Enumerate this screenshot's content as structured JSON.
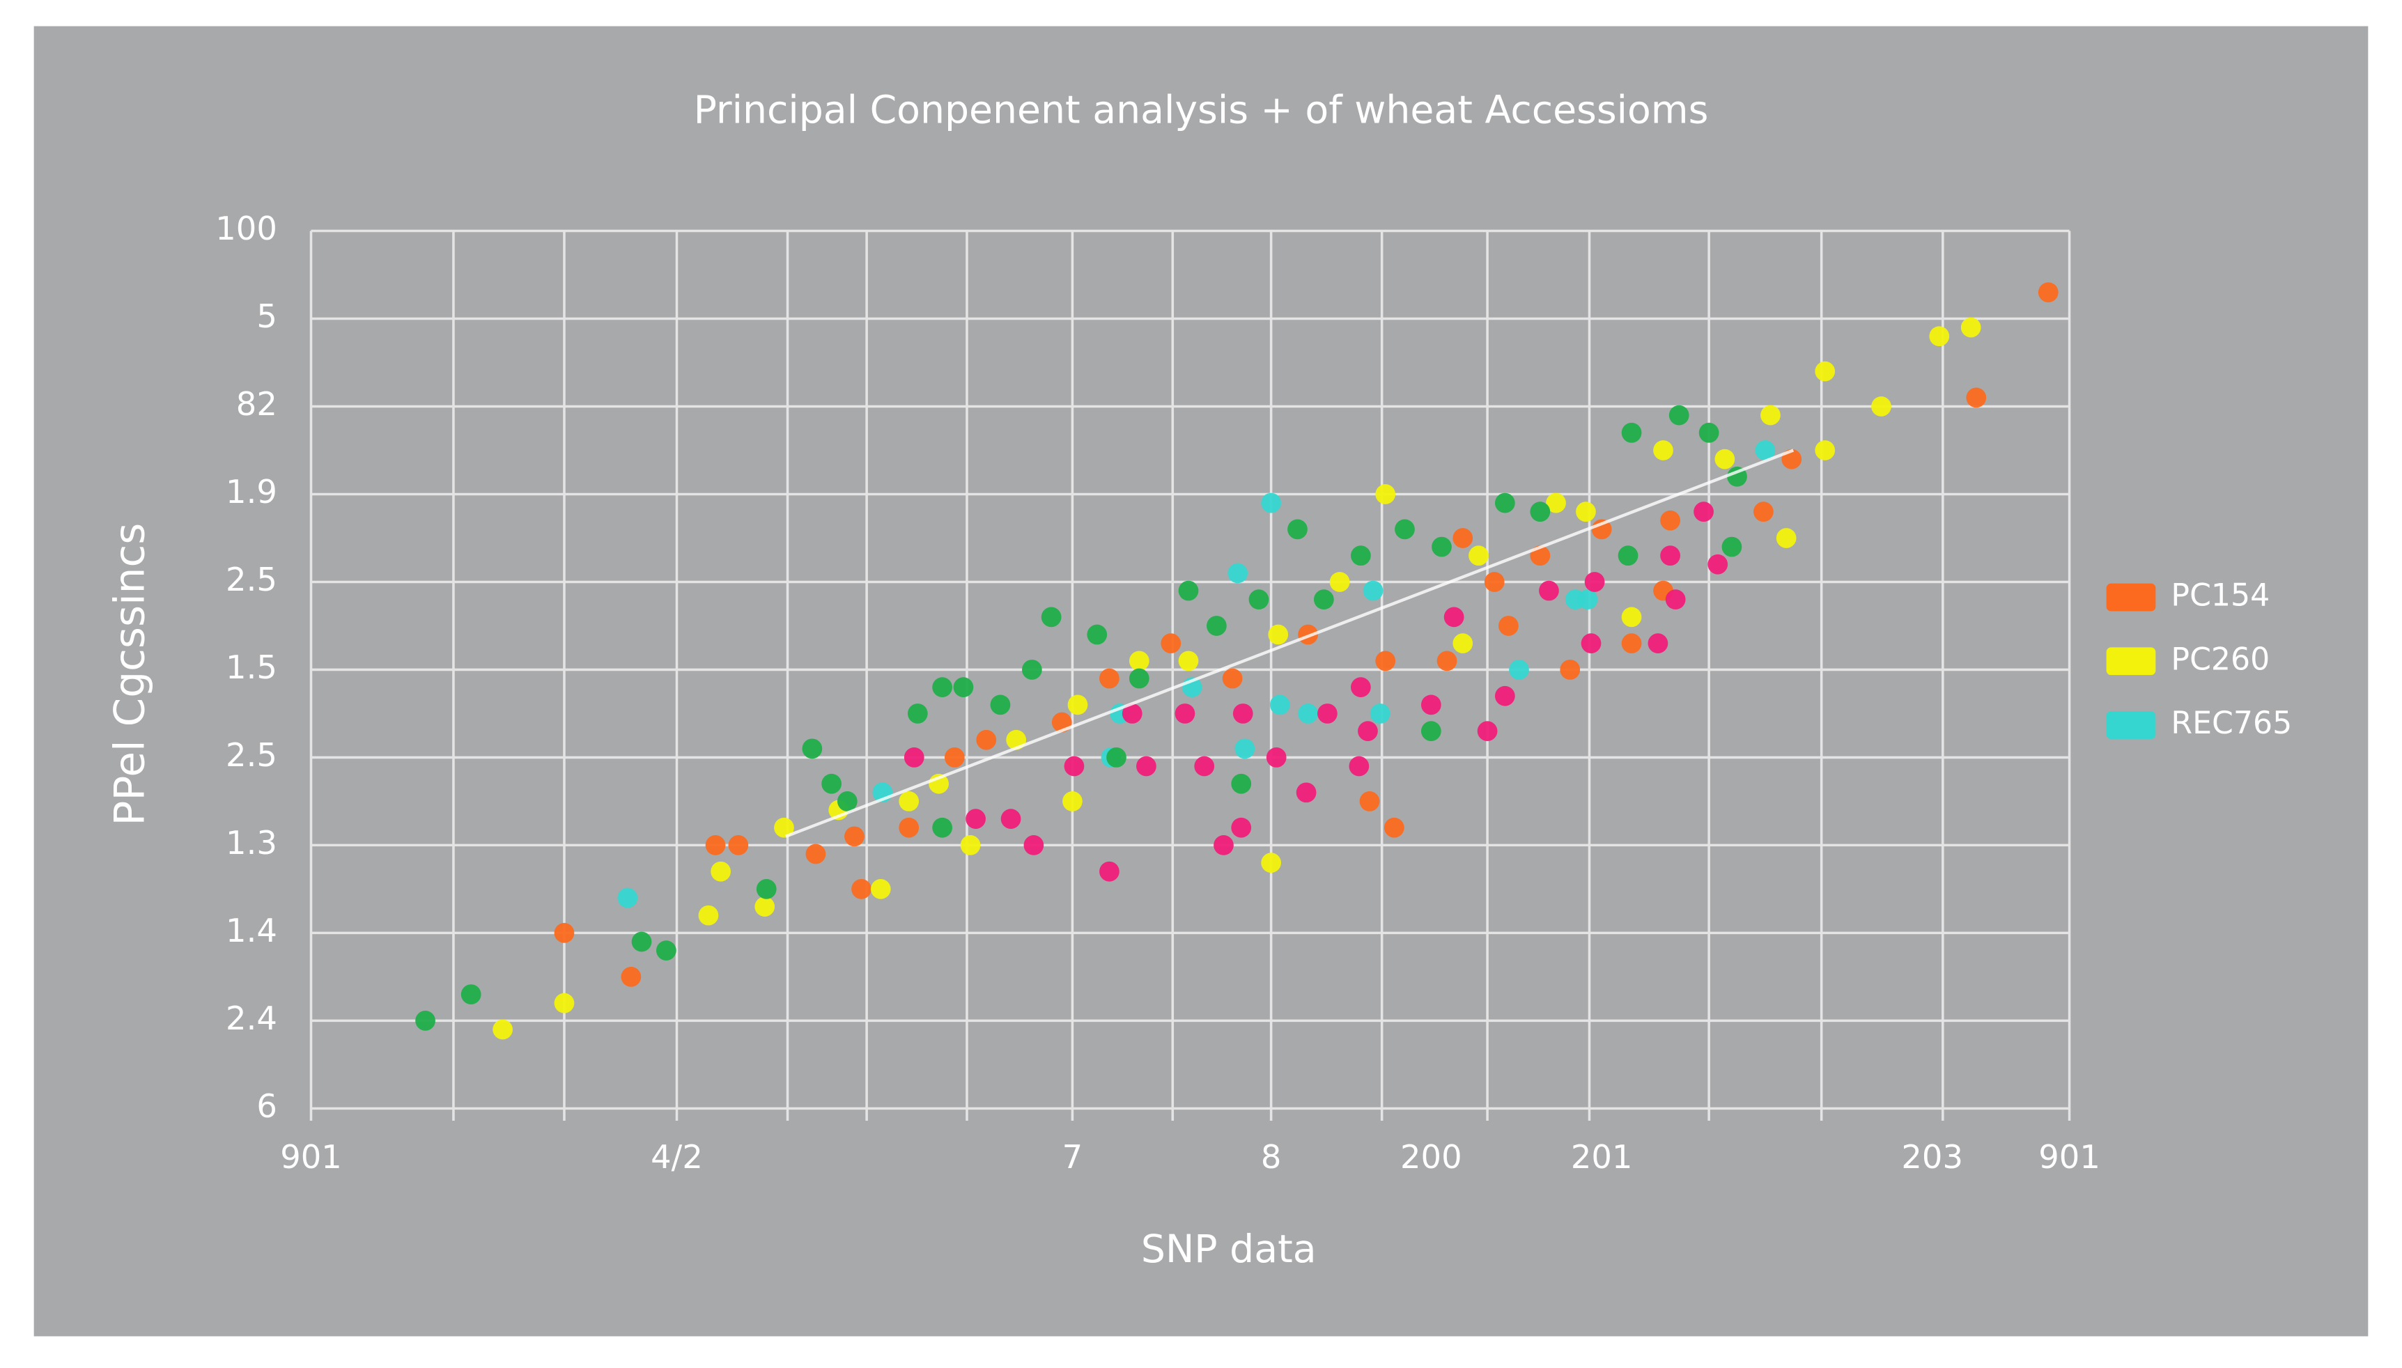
{
  "chart_data": {
    "type": "scatter",
    "title": "Principal Conpenent analysis + of wheat Accessioms",
    "x_label": "SNP data",
    "y_label": "PPel Cgcssincs",
    "xlim": [
      0,
      100
    ],
    "ylim": [
      0,
      10
    ],
    "xticks": [
      {
        "value": 0,
        "label": "901"
      },
      {
        "value": 20.8,
        "label": "4/2"
      },
      {
        "value": 43.3,
        "label": "7"
      },
      {
        "value": 54.6,
        "label": "8"
      },
      {
        "value": 63.7,
        "label": "200"
      },
      {
        "value": 73.4,
        "label": "201"
      },
      {
        "value": 92.2,
        "label": "203"
      },
      {
        "value": 100,
        "label": "901"
      }
    ],
    "xgrid": [
      0,
      8.1,
      14.4,
      20.8,
      27.1,
      31.6,
      37.3,
      43.3,
      49.0,
      54.6,
      60.9,
      66.9,
      72.7,
      79.5,
      85.9,
      92.8,
      100
    ],
    "yticks": [
      {
        "value": 0,
        "label": "6"
      },
      {
        "value": 1,
        "label": "2.4"
      },
      {
        "value": 2,
        "label": "1.4"
      },
      {
        "value": 3,
        "label": "1.3"
      },
      {
        "value": 4,
        "label": "2.5"
      },
      {
        "value": 5,
        "label": "1.5"
      },
      {
        "value": 6,
        "label": "2.5"
      },
      {
        "value": 7,
        "label": "1.9"
      },
      {
        "value": 8,
        "label": "82"
      },
      {
        "value": 9,
        "label": "5"
      },
      {
        "value": 10,
        "label": "100"
      }
    ],
    "grid": true,
    "legend": "right",
    "trendline": {
      "color": "#ffffff",
      "x": [
        27,
        84.3
      ],
      "y": [
        3.1,
        7.5
      ]
    },
    "series": [
      {
        "name": "PC154",
        "color": "#fb6a1f",
        "x": [
          98.8,
          94.7,
          84.2,
          82.6,
          77.3,
          73.4,
          67.3,
          64.6,
          61.1,
          56.7,
          52.4,
          48.9,
          45.4,
          42.7,
          38.4,
          36.6,
          31.3,
          28.7,
          24.3,
          23.0,
          14.4,
          18.2,
          30.9,
          34.0,
          60.2,
          61.6,
          75.1,
          71.6,
          76.9,
          68.1,
          65.5,
          69.9
        ],
        "values": [
          9.3,
          8.1,
          7.4,
          6.8,
          6.7,
          6.6,
          6.0,
          5.1,
          5.1,
          5.4,
          4.9,
          5.3,
          4.9,
          4.4,
          4.2,
          4.0,
          2.5,
          2.9,
          3.0,
          3.0,
          2.0,
          1.5,
          3.1,
          3.2,
          3.5,
          3.2,
          5.3,
          5.0,
          5.9,
          5.5,
          6.5,
          6.3
        ]
      },
      {
        "name": "PC260",
        "color": "#f2f20c",
        "x": [
          92.6,
          94.4,
          89.3,
          86.1,
          86.1,
          83.9,
          83.0,
          80.4,
          76.9,
          72.5,
          70.8,
          66.4,
          61.1,
          58.5,
          55.0,
          49.9,
          47.1,
          43.6,
          40.1,
          35.7,
          34.0,
          30.0,
          26.9,
          23.3,
          22.6,
          25.8,
          14.4,
          10.9,
          32.4,
          37.5,
          43.3,
          54.6,
          75.1,
          65.5
        ],
        "values": [
          8.8,
          8.9,
          8.0,
          8.4,
          7.5,
          6.5,
          7.9,
          7.4,
          7.5,
          6.8,
          6.9,
          6.3,
          7.0,
          6.0,
          5.4,
          5.1,
          5.1,
          4.6,
          4.2,
          3.7,
          3.5,
          3.4,
          3.2,
          2.7,
          2.2,
          2.3,
          1.2,
          0.9,
          2.5,
          3.0,
          3.5,
          2.8,
          5.6,
          5.3
        ]
      },
      {
        "name": "REC765",
        "color": "#35d6d0",
        "x": [
          18.0,
          32.5,
          45.5,
          46.0,
          50.1,
          52.7,
          54.6,
          55.1,
          53.1,
          56.7,
          60.4,
          60.8,
          68.7,
          71.9,
          72.6,
          82.7
        ],
        "values": [
          2.4,
          3.6,
          4.0,
          4.5,
          4.8,
          6.1,
          6.9,
          4.6,
          4.1,
          4.5,
          5.9,
          4.5,
          5.0,
          5.8,
          5.8,
          7.5
        ]
      },
      {
        "color": "#1fae4a",
        "x": [
          6.5,
          9.1,
          18.8,
          20.2,
          25.9,
          28.5,
          29.6,
          30.5,
          34.5,
          35.9,
          37.1,
          39.2,
          41.0,
          42.1,
          44.7,
          47.1,
          49.9,
          51.5,
          53.9,
          56.1,
          57.6,
          59.7,
          62.2,
          64.3,
          67.9,
          69.9,
          75.1,
          77.8,
          79.5,
          81.1,
          80.8,
          74.9,
          63.7,
          52.9,
          45.8,
          35.9
        ],
        "values": [
          1.0,
          1.3,
          1.9,
          1.8,
          2.5,
          4.1,
          3.7,
          3.5,
          4.5,
          4.8,
          4.8,
          4.6,
          5.0,
          5.6,
          5.4,
          4.9,
          5.9,
          5.5,
          5.8,
          6.6,
          5.8,
          6.3,
          6.6,
          6.4,
          6.9,
          6.8,
          7.7,
          7.9,
          7.7,
          7.2,
          6.4,
          6.3,
          4.3,
          3.7,
          4.0,
          3.2
        ]
      },
      {
        "color": "#f01e7a",
        "x": [
          34.3,
          37.8,
          39.8,
          41.1,
          45.4,
          43.4,
          46.7,
          47.5,
          50.8,
          49.7,
          53.0,
          54.9,
          51.9,
          52.9,
          57.8,
          59.6,
          59.7,
          60.1,
          63.7,
          67.9,
          66.9,
          70.4,
          73.0,
          72.8,
          76.6,
          77.3,
          79.2,
          80.0,
          77.6,
          56.6,
          65.0
        ],
        "values": [
          4.0,
          3.3,
          3.3,
          3.0,
          2.7,
          3.9,
          4.5,
          3.9,
          3.9,
          4.5,
          4.5,
          4.0,
          3.0,
          3.2,
          4.5,
          3.9,
          4.8,
          4.3,
          4.6,
          4.7,
          4.3,
          5.9,
          6.0,
          5.3,
          5.3,
          6.3,
          6.8,
          6.2,
          5.8,
          3.6,
          5.6
        ]
      }
    ]
  }
}
